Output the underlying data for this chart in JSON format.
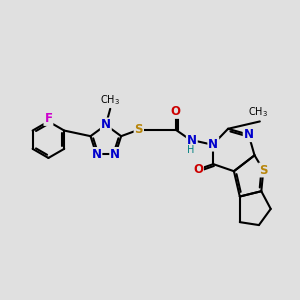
{
  "bg_color": "#e0e0e0",
  "bond_color": "#000000",
  "bond_width": 1.5,
  "colors": {
    "N": "#0000cc",
    "O": "#cc0000",
    "S": "#b8860b",
    "F": "#cc00cc",
    "H": "#008080",
    "C": "#000000"
  },
  "font_size": 8.5,
  "fig_size": [
    3.0,
    3.0
  ],
  "dpi": 100
}
